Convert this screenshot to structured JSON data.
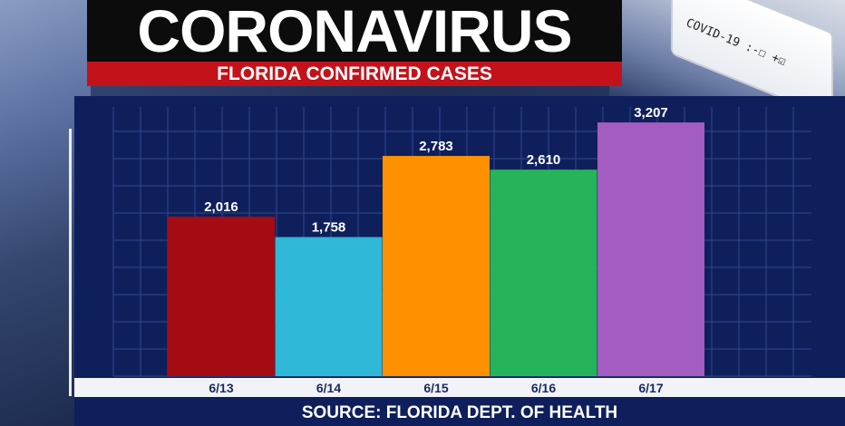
{
  "header": {
    "title": "CORONAVIRUS",
    "subtitle": "FLORIDA CONFIRMED CASES"
  },
  "background": {
    "vial_label": "COVID-19 :-☐ +☑"
  },
  "footer": {
    "source": "SOURCE: FLORIDA DEPT. OF HEALTH"
  },
  "chart_data": {
    "type": "bar",
    "categories": [
      "6/13",
      "6/14",
      "6/15",
      "6/16",
      "6/17"
    ],
    "values": [
      2016,
      1758,
      2783,
      2610,
      3207
    ],
    "value_labels": [
      "2,016",
      "1,758",
      "2,783",
      "2,610",
      "3,207"
    ],
    "colors": [
      "#a50b12",
      "#2fb8d8",
      "#ff9100",
      "#27b35a",
      "#a35cbf"
    ],
    "title": "FLORIDA CONFIRMED CASES",
    "xlabel": "",
    "ylabel": "",
    "ylim": [
      0,
      3500
    ],
    "grid": true
  }
}
